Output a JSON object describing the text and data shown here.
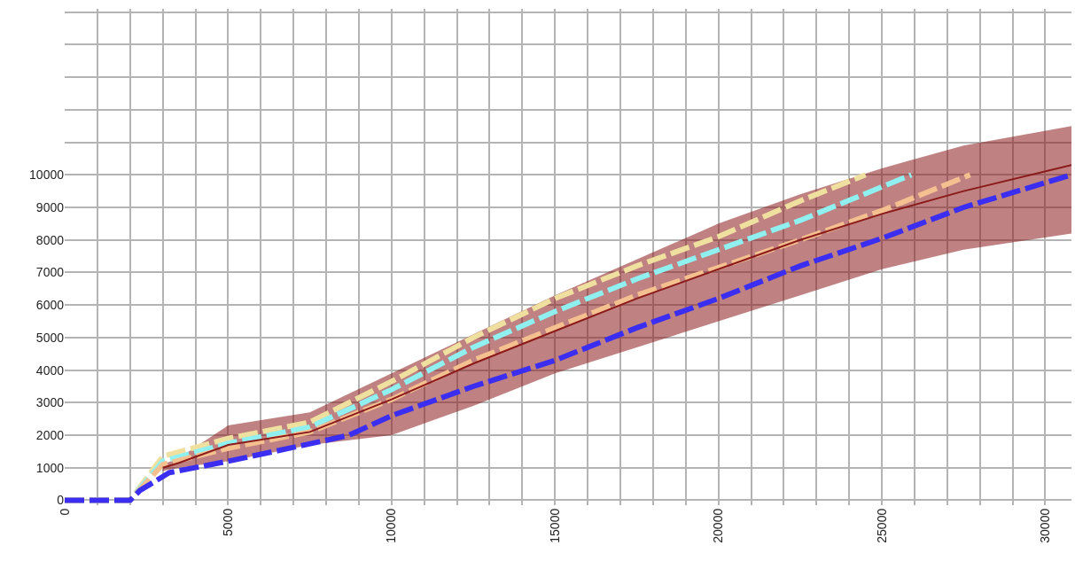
{
  "chart_data": {
    "type": "line",
    "xlim": [
      0,
      30800
    ],
    "ylim": [
      -150,
      15100
    ],
    "grid": true,
    "marker": "none",
    "line_style": "dashed",
    "xticks": [
      0,
      {
        "value": 1000,
        "label": null
      },
      {
        "value": 2000,
        "label": null
      },
      {
        "value": 3000,
        "label": null
      },
      {
        "value": 4000,
        "label": null
      },
      5000,
      {
        "value": 6000,
        "label": null
      },
      {
        "value": 7000,
        "label": null
      },
      {
        "value": 8000,
        "label": null
      },
      {
        "value": 9000,
        "label": null
      },
      10000,
      {
        "value": 11000,
        "label": null
      },
      {
        "value": 12000,
        "label": null
      },
      {
        "value": 13000,
        "label": null
      },
      {
        "value": 14000,
        "label": null
      },
      15000,
      {
        "value": 16000,
        "label": null
      },
      {
        "value": 17000,
        "label": null
      },
      {
        "value": 18000,
        "label": null
      },
      {
        "value": 19000,
        "label": null
      },
      20000,
      {
        "value": 21000,
        "label": null
      },
      {
        "value": 22000,
        "label": null
      },
      {
        "value": 23000,
        "label": null
      },
      {
        "value": 24000,
        "label": null
      },
      25000,
      {
        "value": 26000,
        "label": null
      },
      {
        "value": 27000,
        "label": null
      },
      {
        "value": 28000,
        "label": null
      },
      {
        "value": 29000,
        "label": null
      },
      30000
    ],
    "yticks": [
      0,
      1000,
      2000,
      3000,
      4000,
      5000,
      6000,
      7000,
      8000,
      9000,
      10000,
      {
        "value": 11000,
        "label": null
      },
      {
        "value": 12000,
        "label": null
      },
      {
        "value": 13000,
        "label": null
      },
      {
        "value": 14000,
        "label": null
      },
      {
        "value": 15000,
        "label": null
      }
    ],
    "series": [
      {
        "color": "#8b1a1a",
        "line_style": "solid",
        "x": [
          3000,
          3500,
          5000,
          7500,
          10000,
          12500,
          15000,
          17500,
          20000,
          22500,
          25000,
          27500,
          30800
        ],
        "values": [
          1000,
          1150,
          1700,
          2100,
          3100,
          4200,
          5200,
          6200,
          7100,
          8000,
          8800,
          9500,
          10300
        ],
        "lower": [
          900,
          1000,
          1200,
          1700,
          2000,
          2900,
          3900,
          4700,
          5500,
          6300,
          7100,
          7700,
          8200
        ],
        "upper": [
          1100,
          1300,
          2300,
          2700,
          3900,
          5100,
          6300,
          7400,
          8500,
          9400,
          10200,
          10900,
          11500
        ]
      },
      {
        "color": "#f0e0a0",
        "x": [
          0,
          2000,
          3000,
          5000,
          7500,
          10000,
          12500,
          15000,
          17500,
          20000,
          22500,
          24500
        ],
        "values": [
          0,
          0,
          1350,
          1900,
          2400,
          3650,
          5000,
          6200,
          7200,
          8100,
          9200,
          10000
        ]
      },
      {
        "color": "#90f0f0",
        "x": [
          0,
          2000,
          3000,
          5000,
          7500,
          10000,
          12500,
          15000,
          17500,
          20000,
          22500,
          25900
        ],
        "values": [
          0,
          0,
          1200,
          1750,
          2250,
          3400,
          4700,
          5800,
          6800,
          7700,
          8600,
          10000
        ]
      },
      {
        "color": "#f5c090",
        "x": [
          0,
          2000,
          3000,
          5000,
          7500,
          10000,
          12500,
          15000,
          17500,
          20000,
          22500,
          25000,
          27700
        ],
        "values": [
          0,
          0,
          1100,
          1600,
          2100,
          3100,
          4300,
          5300,
          6300,
          7150,
          8000,
          8900,
          10000
        ]
      },
      {
        "color": "#3b2ef0",
        "x": [
          0,
          2000,
          2300,
          3200,
          5000,
          7800,
          8700,
          10000,
          12500,
          15000,
          17500,
          20000,
          22500,
          25000,
          27500,
          30800
        ],
        "values": [
          0,
          0,
          300,
          850,
          1200,
          1800,
          2000,
          2600,
          3500,
          4300,
          5300,
          6200,
          7200,
          8050,
          9000,
          10000
        ]
      }
    ]
  }
}
